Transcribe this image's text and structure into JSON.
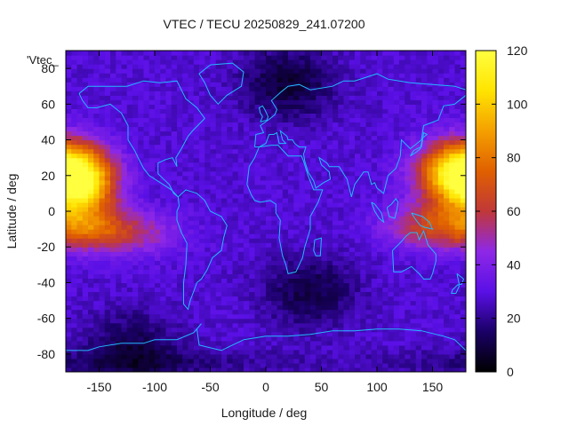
{
  "chart_data": {
    "type": "heatmap",
    "title": "VTEC / TECU 20250829_241.07200",
    "xlabel": "Longitude / deg",
    "ylabel": "Latitude / deg",
    "series_key_label": "'Vtec_",
    "xlim": [
      -180,
      180
    ],
    "ylim": [
      -90,
      90
    ],
    "x_ticks": [
      "-150",
      "-100",
      "-50",
      "0",
      "50",
      "100",
      "150"
    ],
    "y_ticks": [
      "80",
      "60",
      "40",
      "20",
      "0",
      "-20",
      "-40",
      "-60",
      "-80"
    ],
    "x_tick_values": [
      -150,
      -100,
      -50,
      0,
      50,
      100,
      150
    ],
    "y_tick_values": [
      80,
      60,
      40,
      20,
      0,
      -20,
      -40,
      -60,
      -80
    ],
    "colorbar": {
      "range": [
        0,
        120
      ],
      "ticks": [
        "0",
        "20",
        "40",
        "60",
        "80",
        "100",
        "120"
      ],
      "tick_values": [
        0,
        20,
        40,
        60,
        80,
        100,
        120
      ],
      "palette": [
        "#000000",
        "#1a0066",
        "#5a10e6",
        "#8e28e6",
        "#c03838",
        "#e06000",
        "#f4a000",
        "#ffe400",
        "#ffff40"
      ]
    },
    "grid_resolution_deg": {
      "lon": 5,
      "lat": 2.5
    },
    "field_model": {
      "background_tecu": 28,
      "pacific_east_anomaly": {
        "center_lon": -165,
        "center_lat": 15,
        "peak_tecu": 92
      },
      "pacific_west_anomaly": {
        "center_lon": 172,
        "center_lat": 22,
        "peak_tecu": 106
      },
      "americas_lobe": {
        "center_lon": -120,
        "center_lat": -12,
        "peak_tecu": 62
      },
      "low_regions": [
        {
          "center_lon": 20,
          "center_lat": 72,
          "min_tecu": 8
        },
        {
          "center_lon": 40,
          "center_lat": -45,
          "min_tecu": 10
        },
        {
          "center_lon": -120,
          "center_lat": -75,
          "min_tecu": 12
        }
      ]
    },
    "continent_outline_color": "#22b8ff",
    "grid": false,
    "legend": "top-left"
  }
}
